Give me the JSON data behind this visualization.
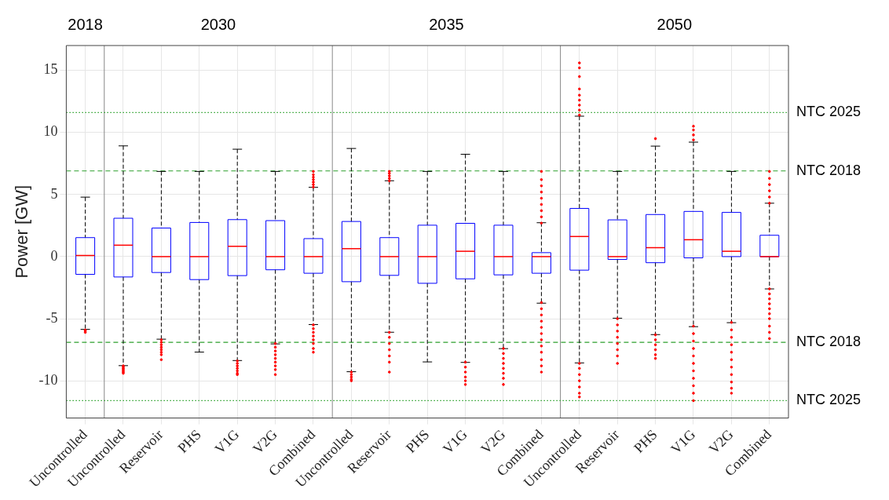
{
  "chart_data": {
    "type": "box",
    "ylabel": "Power [GW]",
    "annotations": [
      "2018",
      "2030",
      "2035",
      "2050"
    ],
    "categories": [
      "Uncontrolled",
      "Uncontrolled",
      "Reservoir",
      "PHS",
      "V1G",
      "V2G",
      "Combined",
      "Uncontrolled",
      "Reservoir",
      "PHS",
      "V1G",
      "V2G",
      "Combined",
      "Uncontrolled",
      "Reservoir",
      "PHS",
      "V1G",
      "V2G",
      "Combined"
    ],
    "color": "#0000ff",
    "boxes": [
      {
        "low": -5.86,
        "q1": -1.43,
        "median": 0.09,
        "q3": 1.53,
        "high": 4.79,
        "outliers": [
          -5.9,
          -6.0,
          -6.1
        ]
      },
      {
        "low": -8.78,
        "q1": -1.64,
        "median": 0.92,
        "q3": 3.09,
        "high": 8.92,
        "outliers": [
          -8.8,
          -8.9,
          -9.0,
          -9.1,
          -9.2,
          -9.3,
          -9.4
        ]
      },
      {
        "low": -6.65,
        "q1": -1.28,
        "median": 0,
        "q3": 2.3,
        "high": 6.86,
        "outliers": [
          -6.7,
          -6.9,
          -7.1,
          -7.3,
          -7.5,
          -7.7,
          -7.9,
          -8.3
        ]
      },
      {
        "low": -7.69,
        "q1": -1.85,
        "median": 0,
        "q3": 2.75,
        "high": 6.86
      },
      {
        "low": -8.37,
        "q1": -1.53,
        "median": 0.83,
        "q3": 2.98,
        "high": 8.65,
        "outliers": [
          -8.4,
          -8.6,
          -8.8,
          -9.0,
          -9.2,
          -9.4,
          -9.5
        ]
      },
      {
        "low": -7.03,
        "q1": -1.06,
        "median": 0,
        "q3": 2.9,
        "high": 6.86,
        "outliers": [
          -7.0,
          -7.3,
          -7.6,
          -7.9,
          -8.2,
          -8.5,
          -8.8,
          -9.1,
          -9.5
        ]
      },
      {
        "low": -5.47,
        "q1": -1.34,
        "median": 0,
        "q3": 1.45,
        "high": 5.58,
        "outliers": [
          5.6,
          5.8,
          6.0,
          6.2,
          6.4,
          6.6,
          6.86,
          -5.5,
          -5.8,
          -6.1,
          -6.4,
          -6.7,
          -7.0,
          -7.4,
          -7.7
        ]
      },
      {
        "low": -9.27,
        "q1": -2.02,
        "median": 0.64,
        "q3": 2.83,
        "high": 8.71,
        "outliers": [
          -9.3,
          -9.5,
          -9.7,
          -9.9,
          -10.0
        ]
      },
      {
        "low": -6.09,
        "q1": -1.51,
        "median": 0,
        "q3": 1.53,
        "high": 6.11,
        "outliers": [
          6.1,
          6.3,
          6.5,
          6.7,
          6.86,
          -6.1,
          -6.5,
          -7.0,
          -7.5,
          -8.0,
          -8.5,
          -9.3
        ]
      },
      {
        "low": -8.48,
        "q1": -2.15,
        "median": 0,
        "q3": 2.53,
        "high": 6.86
      },
      {
        "low": -8.52,
        "q1": -1.79,
        "median": 0.43,
        "q3": 2.68,
        "high": 8.24,
        "outliers": [
          -8.5,
          -8.9,
          -9.3,
          -9.7,
          -10.0,
          -10.3
        ]
      },
      {
        "low": -7.41,
        "q1": -1.47,
        "median": 0,
        "q3": 2.53,
        "high": 6.86,
        "outliers": [
          -7.4,
          -7.8,
          -8.2,
          -8.6,
          -9.0,
          -9.4,
          -9.8,
          -10.3
        ]
      },
      {
        "low": -3.75,
        "q1": -1.34,
        "median": 0,
        "q3": 0.32,
        "high": 2.73,
        "outliers": [
          2.7,
          3.2,
          3.7,
          4.2,
          4.7,
          5.2,
          5.7,
          6.2,
          6.86,
          -3.7,
          -4.2,
          -4.7,
          -5.2,
          -5.7,
          -6.2,
          -6.7,
          -7.2,
          -7.7,
          -8.3,
          -8.8,
          -9.3
        ]
      },
      {
        "low": -8.56,
        "q1": -1.09,
        "median": 1.62,
        "q3": 3.88,
        "high": 11.31,
        "outliers": [
          11.4,
          11.8,
          12.2,
          12.6,
          13.0,
          13.5,
          14.5,
          15.2,
          15.6,
          -8.6,
          -9.0,
          -9.5,
          -10.0,
          -10.5,
          -11.0,
          -11.3
        ]
      },
      {
        "low": -4.96,
        "q1": -0.23,
        "median": 0,
        "q3": 2.96,
        "high": 6.86,
        "outliers": [
          -5.0,
          -5.5,
          -6.0,
          -6.5,
          -7.0,
          -7.5,
          -8.0,
          -8.6
        ]
      },
      {
        "low": -6.28,
        "q1": -0.49,
        "median": 0.72,
        "q3": 3.39,
        "high": 8.9,
        "outliers": [
          9.5,
          -6.3,
          -6.7,
          -7.1,
          -7.5,
          -7.9,
          -8.2
        ]
      },
      {
        "low": -5.64,
        "q1": -0.1,
        "median": 1.36,
        "q3": 3.64,
        "high": 9.22,
        "outliers": [
          9.4,
          9.8,
          10.2,
          10.5,
          -5.6,
          -6.2,
          -6.8,
          -7.4,
          -8.0,
          -8.6,
          -9.2,
          -9.8,
          -10.4,
          -11.0,
          -11.6
        ]
      },
      {
        "low": -5.32,
        "q1": 0,
        "median": 0.43,
        "q3": 3.56,
        "high": 6.86,
        "outliers": [
          -5.3,
          -5.9,
          -6.5,
          -7.1,
          -7.7,
          -8.3,
          -8.9,
          -9.5,
          -10.1,
          -10.6,
          -11.0
        ]
      },
      {
        "low": -2.6,
        "q1": 0,
        "median": 0,
        "q3": 1.72,
        "high": 4.3,
        "outliers": [
          4.3,
          4.8,
          5.3,
          5.8,
          6.3,
          6.86,
          -2.6,
          -3.0,
          -3.4,
          -3.8,
          -4.2,
          -4.6,
          -5.0,
          -5.6,
          -6.1,
          -6.6
        ]
      }
    ],
    "ylim": [
      -13,
      17
    ],
    "yticks": [
      -10,
      -5,
      0,
      5,
      10,
      15
    ],
    "grid": true,
    "ref_lines": [
      {
        "axis": "y",
        "value": 11.6,
        "label": "NTC 2025",
        "color": "#2ca02c",
        "line_style": "dotted"
      },
      {
        "axis": "y",
        "value": 6.9,
        "label": "NTC 2018",
        "color": "#2ca02c",
        "line_style": "dashed"
      },
      {
        "axis": "y",
        "value": -6.9,
        "label": "NTC 2018",
        "color": "#2ca02c",
        "line_style": "dashed"
      },
      {
        "axis": "y",
        "value": -11.6,
        "label": "NTC 2025",
        "color": "#2ca02c",
        "line_style": "dotted"
      }
    ]
  }
}
